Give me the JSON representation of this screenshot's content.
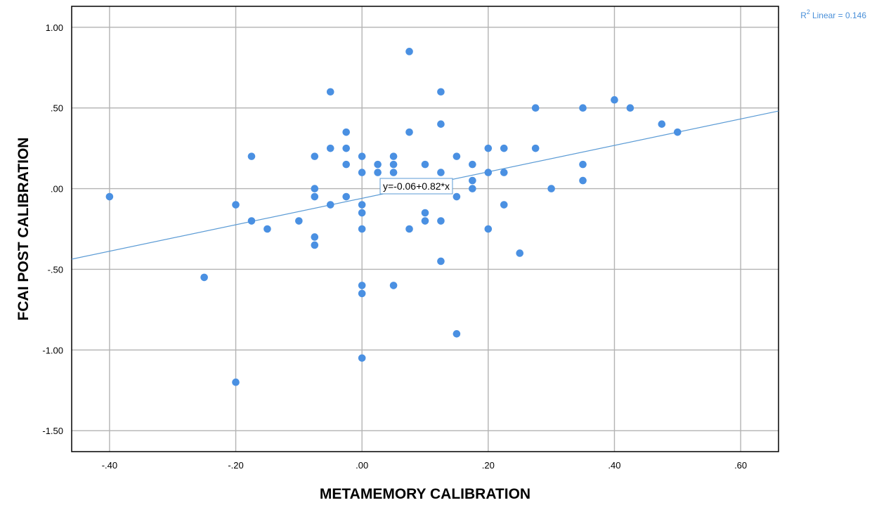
{
  "chart_data": {
    "type": "scatter",
    "xlabel": "METAMEMORY CALIBRATION",
    "ylabel": "FCAI POST CALIBRATION",
    "xlim": [
      -0.46,
      0.66
    ],
    "ylim": [
      -1.63,
      1.13
    ],
    "x_ticks": [
      -0.4,
      -0.2,
      0.0,
      0.2,
      0.4,
      0.6
    ],
    "x_tick_labels": [
      "-.40",
      "-.20",
      ".00",
      ".20",
      ".40",
      ".60"
    ],
    "y_ticks": [
      1.0,
      0.5,
      0.0,
      -0.5,
      -1.0,
      -1.5
    ],
    "y_tick_labels": [
      "1.00",
      ".50",
      ".00",
      "-.50",
      "-1.00",
      "-1.50"
    ],
    "grid": true,
    "point_color": "#4a90e2",
    "line_color": "#5b9bd5",
    "fit_line": {
      "intercept": -0.06,
      "slope": 0.82,
      "equation_label": "y=-0.06+0.82*x"
    },
    "r2_label": "Linear = 0.146",
    "r2_prefix": "R",
    "r2_sup": "2",
    "points": [
      {
        "x": -0.4,
        "y": -0.05
      },
      {
        "x": -0.25,
        "y": -0.55
      },
      {
        "x": -0.2,
        "y": -0.1
      },
      {
        "x": -0.2,
        "y": -1.2
      },
      {
        "x": -0.175,
        "y": 0.2
      },
      {
        "x": -0.175,
        "y": -0.2
      },
      {
        "x": -0.15,
        "y": -0.25
      },
      {
        "x": -0.1,
        "y": -0.2
      },
      {
        "x": -0.075,
        "y": 0.2
      },
      {
        "x": -0.075,
        "y": 0.0
      },
      {
        "x": -0.075,
        "y": -0.05
      },
      {
        "x": -0.075,
        "y": -0.3
      },
      {
        "x": -0.075,
        "y": -0.35
      },
      {
        "x": -0.05,
        "y": 0.6
      },
      {
        "x": -0.05,
        "y": 0.25
      },
      {
        "x": -0.05,
        "y": -0.1
      },
      {
        "x": -0.025,
        "y": 0.35
      },
      {
        "x": -0.025,
        "y": 0.25
      },
      {
        "x": -0.025,
        "y": 0.15
      },
      {
        "x": -0.025,
        "y": -0.05
      },
      {
        "x": 0.0,
        "y": 0.2
      },
      {
        "x": 0.0,
        "y": 0.1
      },
      {
        "x": 0.0,
        "y": -0.1
      },
      {
        "x": 0.0,
        "y": -0.15
      },
      {
        "x": 0.0,
        "y": -0.25
      },
      {
        "x": 0.0,
        "y": -0.6
      },
      {
        "x": 0.0,
        "y": -0.65
      },
      {
        "x": 0.0,
        "y": -1.05
      },
      {
        "x": 0.025,
        "y": 0.15
      },
      {
        "x": 0.025,
        "y": 0.1
      },
      {
        "x": 0.05,
        "y": 0.2
      },
      {
        "x": 0.05,
        "y": 0.15
      },
      {
        "x": 0.05,
        "y": 0.1
      },
      {
        "x": 0.05,
        "y": -0.6
      },
      {
        "x": 0.075,
        "y": 0.85
      },
      {
        "x": 0.075,
        "y": 0.35
      },
      {
        "x": 0.075,
        "y": -0.25
      },
      {
        "x": 0.1,
        "y": 0.15
      },
      {
        "x": 0.1,
        "y": -0.15
      },
      {
        "x": 0.1,
        "y": -0.2
      },
      {
        "x": 0.125,
        "y": 0.6
      },
      {
        "x": 0.125,
        "y": 0.4
      },
      {
        "x": 0.125,
        "y": 0.1
      },
      {
        "x": 0.125,
        "y": -0.2
      },
      {
        "x": 0.125,
        "y": -0.45
      },
      {
        "x": 0.15,
        "y": 0.2
      },
      {
        "x": 0.15,
        "y": -0.05
      },
      {
        "x": 0.15,
        "y": -0.9
      },
      {
        "x": 0.175,
        "y": 0.15
      },
      {
        "x": 0.175,
        "y": 0.05
      },
      {
        "x": 0.175,
        "y": 0.0
      },
      {
        "x": 0.2,
        "y": 0.25
      },
      {
        "x": 0.2,
        "y": 0.1
      },
      {
        "x": 0.2,
        "y": -0.25
      },
      {
        "x": 0.225,
        "y": 0.25
      },
      {
        "x": 0.225,
        "y": 0.1
      },
      {
        "x": 0.225,
        "y": -0.1
      },
      {
        "x": 0.25,
        "y": -0.4
      },
      {
        "x": 0.275,
        "y": 0.5
      },
      {
        "x": 0.275,
        "y": 0.25
      },
      {
        "x": 0.3,
        "y": 0.0
      },
      {
        "x": 0.35,
        "y": 0.5
      },
      {
        "x": 0.35,
        "y": 0.15
      },
      {
        "x": 0.35,
        "y": 0.05
      },
      {
        "x": 0.4,
        "y": 0.55
      },
      {
        "x": 0.425,
        "y": 0.5
      },
      {
        "x": 0.475,
        "y": 0.4
      },
      {
        "x": 0.5,
        "y": 0.35
      }
    ]
  }
}
